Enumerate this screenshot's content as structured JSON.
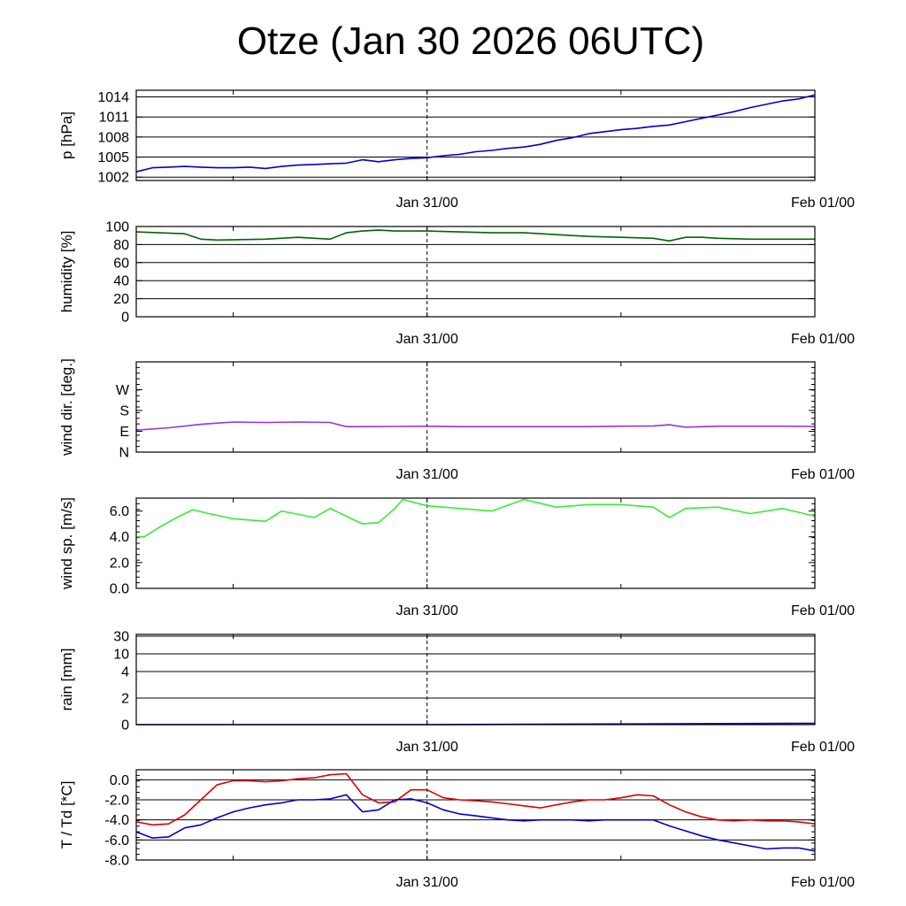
{
  "title": "Otze (Jan 30 2026 06UTC)",
  "chart_data": [
    {
      "type": "line",
      "ylabel": "p [hPa]",
      "ylim": [
        1001.5,
        1015
      ],
      "yticks": [
        "1002",
        "1005",
        "1008",
        "1011",
        "1014"
      ],
      "xticks": [
        "Jan 31/00",
        "Feb 01/00"
      ],
      "grid": true,
      "series": [
        {
          "color": "#0000cc",
          "x": [
            0,
            1,
            2,
            3,
            4,
            5,
            6,
            7,
            8,
            9,
            10,
            11,
            12,
            13,
            14,
            15,
            16,
            17,
            18,
            19,
            20,
            21,
            22,
            23,
            24,
            25,
            26,
            27,
            28,
            29,
            30,
            31,
            32,
            33,
            34,
            35,
            36,
            37,
            38,
            39,
            40,
            41,
            42
          ],
          "values": [
            1002.8,
            1003.4,
            1003.5,
            1003.6,
            1003.5,
            1003.4,
            1003.4,
            1003.5,
            1003.3,
            1003.6,
            1003.8,
            1003.9,
            1004.0,
            1004.1,
            1004.6,
            1004.3,
            1004.6,
            1004.8,
            1004.9,
            1005.2,
            1005.4,
            1005.8,
            1006.0,
            1006.3,
            1006.5,
            1006.9,
            1007.5,
            1007.9,
            1008.5,
            1008.8,
            1009.1,
            1009.3,
            1009.6,
            1009.8,
            1010.3,
            1010.8,
            1011.3,
            1011.8,
            1012.4,
            1012.9,
            1013.4,
            1013.7,
            1014.3
          ]
        }
      ]
    },
    {
      "type": "line",
      "ylabel": "humidity [%]",
      "ylim": [
        0,
        100
      ],
      "yticks": [
        "0",
        "20",
        "40",
        "60",
        "80",
        "100"
      ],
      "xticks": [
        "Jan 31/00",
        "Feb 01/00"
      ],
      "grid": true,
      "series": [
        {
          "color": "#006400",
          "x": [
            0,
            3,
            4,
            5,
            8,
            10,
            12,
            13,
            14,
            15,
            16,
            18,
            20,
            22,
            24,
            26,
            28,
            30,
            32,
            33,
            34,
            35,
            36,
            38,
            40,
            42
          ],
          "values": [
            94,
            92,
            86,
            85,
            86,
            88,
            86,
            93,
            95,
            96,
            95,
            95,
            94,
            93,
            93,
            91,
            89,
            88,
            87,
            84,
            88,
            88,
            87,
            86,
            86,
            86
          ]
        }
      ]
    },
    {
      "type": "line",
      "ylabel": "wind dir. [deg.]",
      "ylim": [
        0,
        390
      ],
      "yticks": [
        "N",
        "E",
        "S",
        "W"
      ],
      "xticks": [
        "Jan 31/00",
        "Feb 01/00"
      ],
      "grid": false,
      "series": [
        {
          "color": "#9933dd",
          "x": [
            0,
            2,
            4,
            6,
            8,
            10,
            12,
            13,
            14,
            16,
            18,
            20,
            24,
            28,
            30,
            32,
            33,
            34,
            36,
            40,
            42
          ],
          "values": [
            95,
            105,
            120,
            130,
            128,
            130,
            128,
            110,
            110,
            111,
            112,
            110,
            110,
            110,
            112,
            113,
            118,
            108,
            112,
            112,
            111
          ]
        }
      ]
    },
    {
      "type": "line",
      "ylabel": "wind sp. [m/s]",
      "ylim": [
        0,
        7
      ],
      "yticks": [
        "0.0",
        "2.0",
        "4.0",
        "6.0"
      ],
      "xticks": [
        "Jan 31/00",
        "Feb 01/00"
      ],
      "grid": false,
      "series": [
        {
          "color": "#33ee33",
          "x": [
            0,
            0.5,
            1.5,
            2.5,
            3.5,
            4.5,
            6,
            8,
            9,
            11,
            12,
            14,
            15,
            16,
            16.5,
            18,
            22,
            24,
            26,
            28,
            30,
            32,
            33,
            34,
            36,
            38,
            40,
            42
          ],
          "values": [
            4.0,
            4.0,
            4.8,
            5.5,
            6.1,
            5.8,
            5.4,
            5.2,
            6.0,
            5.5,
            6.2,
            5.0,
            5.1,
            6.2,
            6.9,
            6.4,
            6.0,
            6.9,
            6.3,
            6.5,
            6.5,
            6.3,
            5.5,
            6.2,
            6.3,
            5.8,
            6.2,
            5.6
          ]
        }
      ]
    },
    {
      "type": "line",
      "ylabel": "rain [mm]",
      "ylim": [
        0,
        30
      ],
      "yticks": [
        "0",
        "2",
        "4",
        "10",
        "30"
      ],
      "xticks": [
        "Jan 31/00",
        "Feb 01/00"
      ],
      "grid": true,
      "series": [
        {
          "color": "#0000cc",
          "x": [
            0,
            18,
            42
          ],
          "values": [
            0,
            0,
            0.1
          ]
        }
      ]
    },
    {
      "type": "line",
      "ylabel": "T / Td [*C]",
      "ylim": [
        -8,
        1
      ],
      "yticks": [
        "-8.0",
        "-6.0",
        "-4.0",
        "-2.0",
        "0.0"
      ],
      "xticks": [
        "Jan 31/00",
        "Feb 01/00"
      ],
      "grid": true,
      "series": [
        {
          "color": "#dd0000",
          "x": [
            0,
            1,
            2,
            3,
            4,
            5,
            6,
            7,
            8,
            9,
            10,
            11,
            12,
            13,
            14,
            15,
            16,
            17,
            18,
            19,
            20,
            21,
            22,
            23,
            24,
            25,
            26,
            27,
            28,
            29,
            30,
            31,
            32,
            33,
            34,
            35,
            36,
            37,
            38,
            39,
            40,
            41,
            42
          ],
          "values": [
            -4.2,
            -4.5,
            -4.4,
            -3.5,
            -2.0,
            -0.5,
            -0.1,
            -0.1,
            -0.2,
            -0.1,
            0.1,
            0.2,
            0.5,
            0.6,
            -1.5,
            -2.3,
            -2.2,
            -1.0,
            -1.0,
            -1.8,
            -2.0,
            -2.1,
            -2.2,
            -2.4,
            -2.6,
            -2.8,
            -2.5,
            -2.2,
            -2.0,
            -2.0,
            -1.8,
            -1.5,
            -1.6,
            -2.5,
            -3.2,
            -3.7,
            -4.0,
            -4.1,
            -4.0,
            -4.1,
            -4.1,
            -4.2,
            -4.4
          ]
        },
        {
          "color": "#0000cc",
          "x": [
            0,
            1,
            2,
            3,
            4,
            5,
            6,
            7,
            8,
            9,
            10,
            11,
            12,
            13,
            14,
            15,
            16,
            17,
            18,
            19,
            20,
            21,
            22,
            23,
            24,
            25,
            26,
            27,
            28,
            29,
            30,
            31,
            32,
            33,
            34,
            35,
            36,
            37,
            38,
            39,
            40,
            41,
            42
          ],
          "values": [
            -5.2,
            -5.8,
            -5.7,
            -4.8,
            -4.5,
            -3.8,
            -3.2,
            -2.8,
            -2.5,
            -2.3,
            -2.0,
            -2.0,
            -1.9,
            -1.5,
            -3.2,
            -3.0,
            -2.0,
            -1.9,
            -2.3,
            -3.0,
            -3.4,
            -3.6,
            -3.8,
            -4.0,
            -4.1,
            -4.0,
            -4.0,
            -4.0,
            -4.1,
            -4.0,
            -4.0,
            -4.0,
            -4.0,
            -4.6,
            -5.1,
            -5.6,
            -6.0,
            -6.3,
            -6.6,
            -6.9,
            -6.8,
            -6.8,
            -7.1
          ]
        }
      ]
    }
  ]
}
